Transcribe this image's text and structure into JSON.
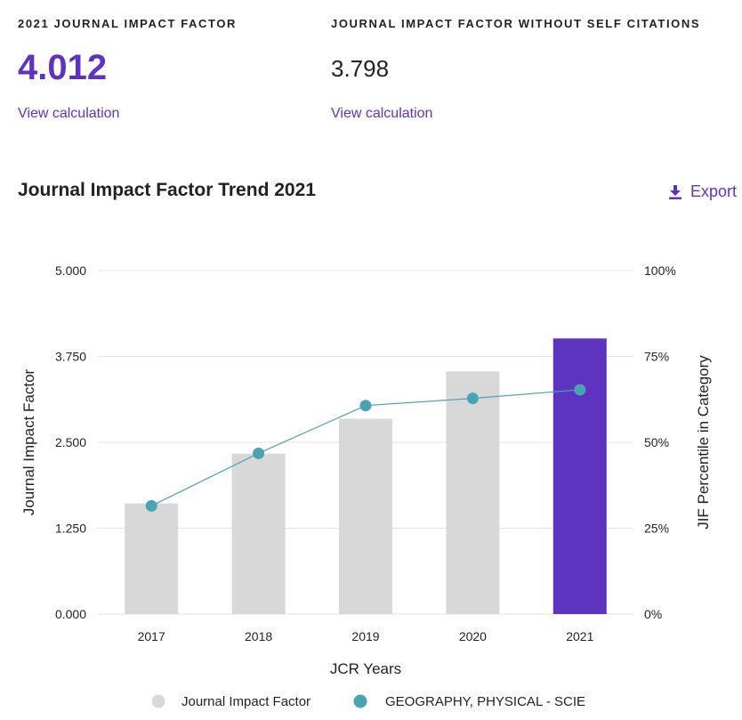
{
  "metrics": {
    "jif": {
      "label": "2021 JOURNAL IMPACT FACTOR",
      "value": "4.012",
      "link": "View calculation"
    },
    "jif_no_self": {
      "label": "JOURNAL IMPACT FACTOR WITHOUT SELF CITATIONS",
      "value": "3.798",
      "link": "View calculation"
    }
  },
  "trend": {
    "title": "Journal Impact Factor Trend 2021",
    "export_label": "Export",
    "export_icon": "download-icon"
  },
  "colors": {
    "accent": "#5e33bf",
    "bar_default": "#d8d8d8",
    "bar_highlight": "#5e33bf",
    "line": "#4aa3b2",
    "grid": "#e3e3e3"
  },
  "chart_data": {
    "type": "bar",
    "categories": [
      "2017",
      "2018",
      "2019",
      "2020",
      "2021"
    ],
    "series": [
      {
        "name": "Journal Impact Factor",
        "type": "bar",
        "axis": "left",
        "values": [
          1.611,
          2.335,
          2.843,
          3.532,
          4.012
        ],
        "highlight_index": 4
      },
      {
        "name": "GEOGRAPHY, PHYSICAL - SCIE",
        "type": "line",
        "axis": "right",
        "values": [
          31.5,
          46.8,
          60.7,
          62.8,
          65.3
        ]
      }
    ],
    "xlabel": "JCR Years",
    "ylabel": "Journal Impact Factor",
    "y2label": "JIF Percentile in Category",
    "ylim": [
      0,
      5
    ],
    "y2lim": [
      0,
      100
    ],
    "yticks": [
      "0.000",
      "1.250",
      "2.500",
      "3.750",
      "5.000"
    ],
    "y2ticks": [
      "0%",
      "25%",
      "50%",
      "75%",
      "100%"
    ],
    "grid": true,
    "legend_position": "bottom"
  }
}
